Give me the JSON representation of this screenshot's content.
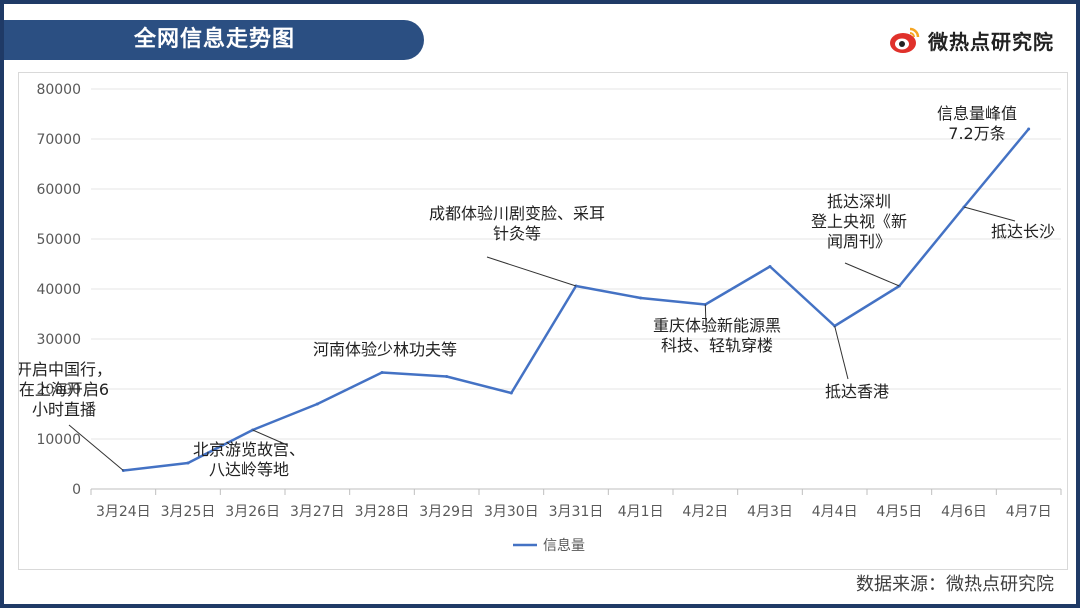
{
  "header": {
    "title": "全网信息走势图",
    "brand": "微热点研究院"
  },
  "colors": {
    "header_bg": "#2b4f82",
    "line": "#4472c4",
    "brand_red": "#e0312b"
  },
  "footer": {
    "source": "数据来源：微热点研究院"
  },
  "chart_data": {
    "type": "line",
    "categories": [
      "3月24日",
      "3月25日",
      "3月26日",
      "3月27日",
      "3月28日",
      "3月29日",
      "3月30日",
      "3月31日",
      "4月1日",
      "4月2日",
      "4月3日",
      "4月4日",
      "4月5日",
      "4月6日",
      "4月7日"
    ],
    "series": [
      {
        "name": "信息量",
        "values": [
          3700,
          5200,
          11800,
          17000,
          23300,
          22500,
          19200,
          40600,
          38200,
          36900,
          44500,
          32600,
          40600,
          56400,
          72000
        ]
      }
    ],
    "ylim": [
      0,
      80000
    ],
    "yticks": [
      0,
      10000,
      20000,
      30000,
      40000,
      50000,
      60000,
      70000,
      80000
    ],
    "grid": true,
    "legend": "bottom",
    "annotations": [
      {
        "index": 0,
        "lines": [
          "开启中国行，",
          "在上海开启6",
          "小时直播"
        ]
      },
      {
        "index": 2,
        "lines": [
          "北京游览故宫、",
          "八达岭等地"
        ]
      },
      {
        "index": 4,
        "lines": [
          "河南体验少林功夫等"
        ]
      },
      {
        "index": 7,
        "lines": [
          "成都体验川剧变脸、采耳",
          "针灸等"
        ]
      },
      {
        "index": 9,
        "lines": [
          "重庆体验新能源黑",
          "科技、轻轨穿楼"
        ]
      },
      {
        "index": 11,
        "lines": [
          "抵达香港"
        ]
      },
      {
        "index": 12,
        "lines": [
          "抵达深圳",
          "登上央视《新",
          "闻周刊》"
        ]
      },
      {
        "index": 13,
        "lines": [
          "抵达长沙"
        ]
      },
      {
        "index": 14,
        "lines": [
          "信息量峰值",
          "7.2万条"
        ]
      }
    ]
  }
}
